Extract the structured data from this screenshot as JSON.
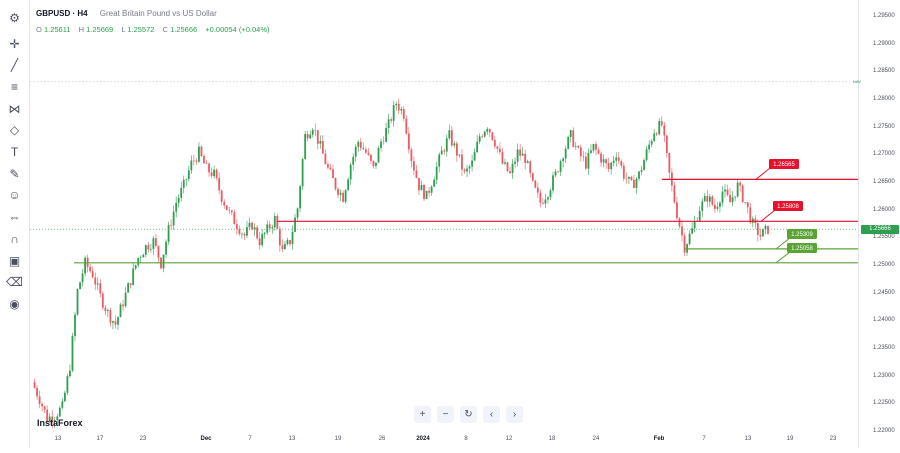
{
  "legend": {
    "symbol": "GBPUSD · H4",
    "description": "Great Britain Pound vs US Dollar"
  },
  "ohlc": {
    "o_label": "O",
    "o": "1.25611",
    "h_label": "H",
    "h": "1.25669",
    "l_label": "L",
    "l": "1.25572",
    "c_label": "C",
    "c": "1.25666",
    "change": "+0.00054 (+0.04%)"
  },
  "watermark": "InstaForex",
  "navigation": {
    "zoom_in": "+",
    "zoom_out": "−",
    "reset": "↻",
    "scroll_left": "‹",
    "scroll_right": "›"
  },
  "toolbar_icons": [
    "crosshair-icon",
    "trend-line-icon",
    "fib-icon",
    "pattern-icon",
    "projection-icon",
    "text-icon",
    "brush-icon",
    "emoji-icon",
    "measure-icon",
    "magnet-icon",
    "lock-icon",
    "trash-icon",
    "hide-icon"
  ],
  "colors": {
    "up": "#2e9e4f",
    "down": "#e85b62",
    "resistance": "#e8112d",
    "support": "#5aa334",
    "grid_dots": "#c8cbd4"
  },
  "chart_data": {
    "type": "candlestick",
    "ylim": [
      1.22,
      1.295
    ],
    "y_ticks": [
      "1.29500",
      "1.29000",
      "1.28500",
      "1.28000",
      "1.27500",
      "1.27000",
      "1.26500",
      "1.26000",
      "1.25500",
      "1.25000",
      "1.24500",
      "1.24000",
      "1.23500",
      "1.23000",
      "1.22500",
      "1.22000"
    ],
    "x_ticks": [
      "13",
      "17",
      "23",
      "Dec",
      "7",
      "13",
      "19",
      "26",
      "2024",
      "8",
      "12",
      "18",
      "24",
      "Feb",
      "7",
      "13",
      "19",
      "23"
    ],
    "x_ticks_bold": [
      "Dec",
      "2024",
      "Feb"
    ],
    "last_price": "1.25666",
    "nav_marker": "NAV",
    "levels": [
      {
        "value": 1.26565,
        "label": "1.26565",
        "kind": "resistance"
      },
      {
        "value": 1.25808,
        "label": "1.25808",
        "kind": "resistance"
      },
      {
        "value": 1.25309,
        "label": "1.25309",
        "kind": "support"
      },
      {
        "value": 1.25058,
        "label": "1.25058",
        "kind": "support"
      }
    ],
    "dotted_level": 1.2833,
    "close_path": [
      [
        0,
        1.229
      ],
      [
        3,
        1.226
      ],
      [
        6,
        1.2225
      ],
      [
        9,
        1.223
      ],
      [
        12,
        1.2245
      ],
      [
        15,
        1.232
      ],
      [
        18,
        1.2455
      ],
      [
        21,
        1.2505
      ],
      [
        24,
        1.2485
      ],
      [
        27,
        1.2445
      ],
      [
        30,
        1.2415
      ],
      [
        33,
        1.2395
      ],
      [
        36,
        1.2435
      ],
      [
        39,
        1.2475
      ],
      [
        42,
        1.2515
      ],
      [
        45,
        1.2535
      ],
      [
        48,
        1.2545
      ],
      [
        51,
        1.2505
      ],
      [
        54,
        1.2565
      ],
      [
        57,
        1.2615
      ],
      [
        60,
        1.2645
      ],
      [
        63,
        1.2685
      ],
      [
        66,
        1.2705
      ],
      [
        69,
        1.2675
      ],
      [
        72,
        1.2665
      ],
      [
        75,
        1.2625
      ],
      [
        78,
        1.2595
      ],
      [
        81,
        1.2575
      ],
      [
        84,
        1.2555
      ],
      [
        87,
        1.2575
      ],
      [
        90,
        1.2545
      ],
      [
        93,
        1.2565
      ],
      [
        96,
        1.2585
      ],
      [
        99,
        1.2525
      ],
      [
        102,
        1.2545
      ],
      [
        105,
        1.2605
      ],
      [
        108,
        1.2735
      ],
      [
        111,
        1.2755
      ],
      [
        114,
        1.2715
      ],
      [
        117,
        1.2675
      ],
      [
        120,
        1.2645
      ],
      [
        123,
        1.2625
      ],
      [
        126,
        1.2685
      ],
      [
        129,
        1.2725
      ],
      [
        132,
        1.2705
      ],
      [
        135,
        1.2675
      ],
      [
        138,
        1.2725
      ],
      [
        141,
        1.2755
      ],
      [
        144,
        1.2795
      ],
      [
        147,
        1.2775
      ],
      [
        150,
        1.2695
      ],
      [
        153,
        1.2645
      ],
      [
        156,
        1.2625
      ],
      [
        159,
        1.2665
      ],
      [
        162,
        1.2705
      ],
      [
        165,
        1.2735
      ],
      [
        168,
        1.2705
      ],
      [
        171,
        1.2665
      ],
      [
        174,
        1.2685
      ],
      [
        177,
        1.2735
      ],
      [
        180,
        1.2755
      ],
      [
        183,
        1.2725
      ],
      [
        186,
        1.2685
      ],
      [
        189,
        1.2665
      ],
      [
        192,
        1.2705
      ],
      [
        195,
        1.2695
      ],
      [
        198,
        1.2645
      ],
      [
        201,
        1.2615
      ],
      [
        204,
        1.2635
      ],
      [
        207,
        1.2665
      ],
      [
        210,
        1.2705
      ],
      [
        213,
        1.2735
      ],
      [
        216,
        1.2705
      ],
      [
        219,
        1.2685
      ],
      [
        222,
        1.2715
      ],
      [
        225,
        1.2695
      ],
      [
        228,
        1.2675
      ],
      [
        231,
        1.2705
      ],
      [
        234,
        1.2665
      ],
      [
        237,
        1.2645
      ],
      [
        240,
        1.2665
      ],
      [
        243,
        1.2705
      ],
      [
        246,
        1.2745
      ],
      [
        249,
        1.2755
      ],
      [
        252,
        1.2665
      ],
      [
        255,
        1.2595
      ],
      [
        258,
        1.2535
      ],
      [
        261,
        1.2565
      ],
      [
        264,
        1.2605
      ],
      [
        267,
        1.2625
      ],
      [
        270,
        1.2605
      ],
      [
        273,
        1.2635
      ],
      [
        276,
        1.2615
      ],
      [
        279,
        1.2645
      ],
      [
        282,
        1.2615
      ],
      [
        285,
        1.2575
      ],
      [
        288,
        1.2555
      ],
      [
        291,
        1.2567
      ]
    ]
  }
}
